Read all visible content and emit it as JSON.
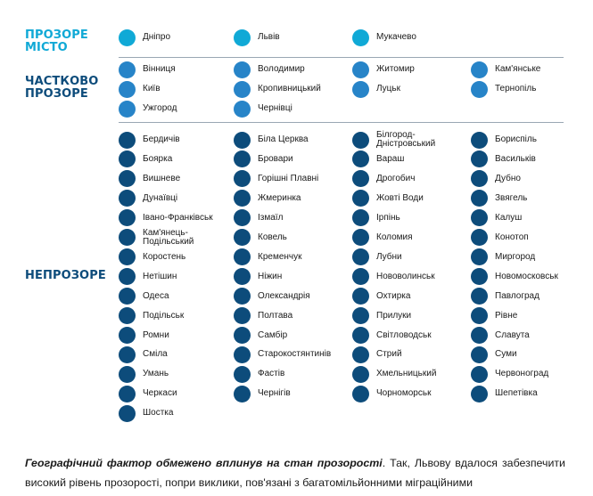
{
  "colors": {
    "transparent": "#10a9d6",
    "partial": "#2784c8",
    "opaque": "#0d4c7b",
    "label_transparent": "#10a9d6",
    "label_partial": "#0d4c7b",
    "label_opaque": "#0d4c7b"
  },
  "groups": {
    "transparent": {
      "label": "ПРОЗОРЕ\nМІСТО",
      "cities": [
        "Дніпро",
        "Львів",
        "Мукачево"
      ]
    },
    "partial": {
      "label": "ЧАСТКОВО\nПРОЗОРЕ",
      "cities": [
        "Вінниця",
        "Володимир",
        "Житомир",
        "Кам'янське",
        "Київ",
        "Кропивницький",
        "Луцьк",
        "Тернопіль",
        "Ужгород",
        "Чернівці"
      ]
    },
    "opaque": {
      "label": "НЕПРОЗОРЕ",
      "cities": [
        "Бердичів",
        "Біла Церква",
        "Білгород-\nДністровський",
        "Бориспіль",
        "Боярка",
        "Бровари",
        "Вараш",
        "Васильків",
        "Вишневе",
        "Горішні Плавні",
        "Дрогобич",
        "Дубно",
        "Дунаївці",
        "Жмеринка",
        "Жовті Води",
        "Звягель",
        "Івано-Франківськ",
        "Ізмаїл",
        "Ірпінь",
        "Калуш",
        "Кам'янець-\nПодільський",
        "Ковель",
        "Коломия",
        "Конотоп",
        "Коростень",
        "Кременчук",
        "Лубни",
        "Миргород",
        "Нетішин",
        "Ніжин",
        "Нововолинськ",
        "Новомосковськ",
        "Одеса",
        "Олександрія",
        "Охтирка",
        "Павлоград",
        "Подільськ",
        "Полтава",
        "Прилуки",
        "Рівне",
        "Ромни",
        "Самбір",
        "Світловодськ",
        "Славута",
        "Сміла",
        "Старокостянтинів",
        "Стрий",
        "Суми",
        "Умань",
        "Фастів",
        "Хмельницький",
        "Червоноград",
        "Черкаси",
        "Чернігів",
        "Чорноморськ",
        "Шепетівка",
        "Шостка"
      ]
    }
  },
  "paragraph": {
    "emphasis": "Географічний фактор обмежено вплинув на стан прозорості",
    "rest": ". Так, Львову вдалося забезпечити високий рівень прозорості, попри виклики, пов'язані з багатомільйонними міграційними"
  }
}
